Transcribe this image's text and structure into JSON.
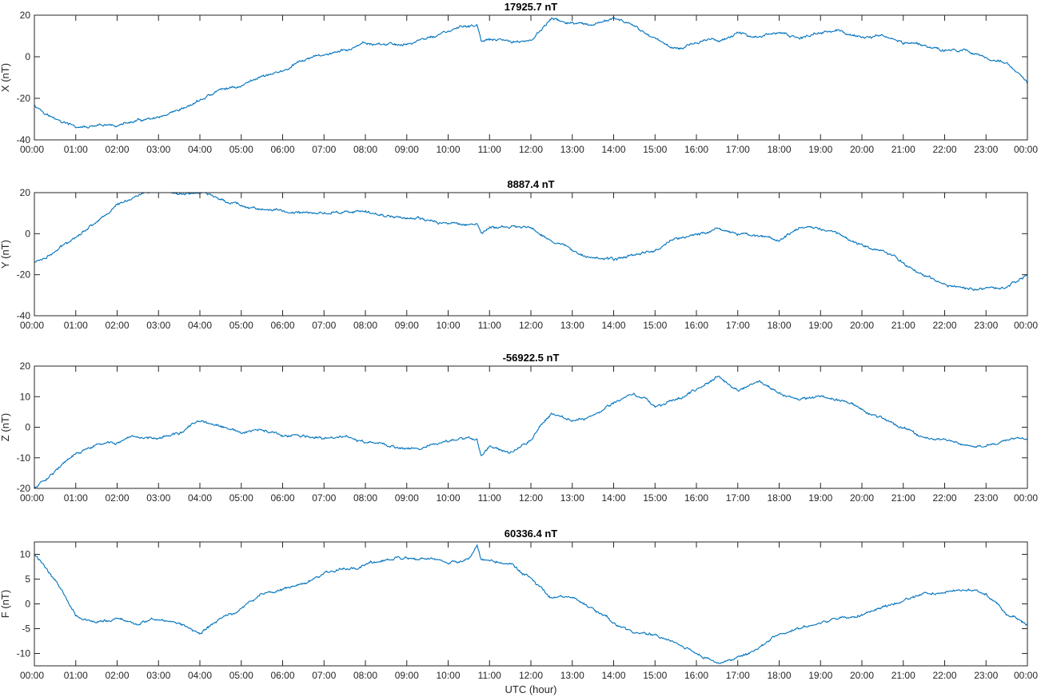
{
  "chart_data": [
    {
      "type": "line",
      "title": "17925.7 nT",
      "ylabel": "X (nT)",
      "xlabel": "",
      "ylim": [
        -40,
        20
      ],
      "yticks": [
        -40,
        -20,
        0,
        20
      ],
      "x_tick_labels": [
        "00:00",
        "01:00",
        "02:00",
        "03:00",
        "04:00",
        "05:00",
        "06:00",
        "07:00",
        "08:00",
        "09:00",
        "10:00",
        "11:00",
        "12:00",
        "13:00",
        "14:00",
        "15:00",
        "16:00",
        "17:00",
        "18:00",
        "19:00",
        "20:00",
        "21:00",
        "22:00",
        "23:00",
        "00:00"
      ],
      "xlim_hours": [
        0,
        24
      ],
      "color": "#0072BD",
      "series": [
        {
          "x": [
            0,
            0.5,
            1,
            1.5,
            2,
            2.5,
            3,
            3.5,
            4,
            4.5,
            5,
            5.5,
            6,
            6.5,
            7,
            7.5,
            8,
            8.5,
            9,
            9.5,
            10,
            10.5,
            10.7,
            10.8,
            11,
            11.5,
            12,
            12.5,
            13,
            13.5,
            14,
            14.5,
            15,
            15.5,
            16,
            16.5,
            17,
            17.5,
            18,
            18.5,
            19,
            19.5,
            20,
            20.5,
            21,
            21.5,
            22,
            22.5,
            23,
            23.5,
            24
          ],
          "y": [
            -23,
            -30,
            -34,
            -34,
            -33,
            -31,
            -30,
            -27,
            -21,
            -16,
            -14,
            -9,
            -7,
            -2,
            1,
            3,
            6,
            6,
            6,
            9,
            12,
            15,
            15,
            7,
            8,
            7,
            8,
            18,
            16,
            14,
            19,
            14,
            9,
            4,
            7,
            8,
            11,
            10,
            11,
            9,
            12,
            12,
            9,
            10,
            7,
            6,
            3,
            3,
            0,
            -3,
            -13
          ]
        }
      ]
    },
    {
      "type": "line",
      "title": "8887.4 nT",
      "ylabel": "Y (nT)",
      "xlabel": "",
      "ylim": [
        -40,
        20
      ],
      "yticks": [
        -40,
        -20,
        0,
        20
      ],
      "x_tick_labels": [
        "00:00",
        "01:00",
        "02:00",
        "03:00",
        "04:00",
        "05:00",
        "06:00",
        "07:00",
        "08:00",
        "09:00",
        "10:00",
        "11:00",
        "12:00",
        "13:00",
        "14:00",
        "15:00",
        "16:00",
        "17:00",
        "18:00",
        "19:00",
        "20:00",
        "21:00",
        "22:00",
        "23:00",
        "00:00"
      ],
      "xlim_hours": [
        0,
        24
      ],
      "color": "#0072BD",
      "series": [
        {
          "x": [
            0,
            0.5,
            1,
            1.5,
            2,
            2.5,
            3,
            3.5,
            4,
            4.5,
            5,
            5.5,
            6,
            6.5,
            7,
            7.5,
            8,
            8.5,
            9,
            9.5,
            10,
            10.5,
            10.7,
            10.8,
            11,
            11.5,
            12,
            12.5,
            13,
            13.5,
            14,
            14.5,
            15,
            15.5,
            16,
            16.5,
            17,
            17.5,
            18,
            18.5,
            19,
            19.5,
            20,
            20.5,
            21,
            21.5,
            22,
            22.5,
            23,
            23.5,
            24
          ],
          "y": [
            -14,
            -9,
            -1,
            6,
            14,
            19,
            21,
            19,
            20,
            17,
            14,
            12,
            11,
            10,
            10,
            11,
            10,
            9,
            8,
            6,
            5,
            5,
            5,
            0,
            3,
            3,
            3,
            -3,
            -8,
            -11,
            -13,
            -10,
            -8,
            -2,
            -1,
            3,
            0,
            -1,
            -3,
            2,
            3,
            0,
            -6,
            -8,
            -14,
            -20,
            -24,
            -27,
            -27,
            -26,
            -20
          ]
        }
      ]
    },
    {
      "type": "line",
      "title": "-56922.5 nT",
      "ylabel": "Z (nT)",
      "xlabel": "",
      "ylim": [
        -20,
        20
      ],
      "yticks": [
        -20,
        -10,
        0,
        10,
        20
      ],
      "x_tick_labels": [
        "00:00",
        "01:00",
        "02:00",
        "03:00",
        "04:00",
        "05:00",
        "06:00",
        "07:00",
        "08:00",
        "09:00",
        "10:00",
        "11:00",
        "12:00",
        "13:00",
        "14:00",
        "15:00",
        "16:00",
        "17:00",
        "18:00",
        "19:00",
        "20:00",
        "21:00",
        "22:00",
        "23:00",
        "00:00"
      ],
      "xlim_hours": [
        0,
        24
      ],
      "color": "#0072BD",
      "series": [
        {
          "x": [
            0,
            0.5,
            1,
            1.5,
            2,
            2.5,
            3,
            3.5,
            4,
            4.5,
            5,
            5.5,
            6,
            6.5,
            7,
            7.5,
            8,
            8.5,
            9,
            9.5,
            10,
            10.5,
            10.7,
            10.8,
            11,
            11.5,
            12,
            12.5,
            13,
            13.5,
            14,
            14.5,
            15,
            15.5,
            16,
            16.5,
            17,
            17.5,
            18,
            18.5,
            19,
            19.5,
            20,
            20.5,
            21,
            21.5,
            22,
            22.5,
            23,
            23.5,
            24
          ],
          "y": [
            -20,
            -14,
            -9,
            -6,
            -5,
            -4,
            -3,
            -2,
            2,
            0,
            -2,
            -1,
            -3,
            -3,
            -4,
            -3,
            -5,
            -6,
            -7,
            -6,
            -5,
            -3,
            -4,
            -10,
            -6,
            -8,
            -4,
            5,
            2,
            4,
            8,
            11,
            7,
            9,
            12,
            17,
            12,
            15,
            11,
            9,
            10,
            9,
            6,
            3,
            0,
            -3,
            -4,
            -6,
            -6,
            -4,
            -4
          ]
        }
      ]
    },
    {
      "type": "line",
      "title": "60336.4 nT",
      "ylabel": "F (nT)",
      "xlabel": "UTC (hour)",
      "ylim": [
        -12.5,
        12.5
      ],
      "yticks": [
        -10,
        -5,
        0,
        5,
        10
      ],
      "x_tick_labels": [
        "00:00",
        "01:00",
        "02:00",
        "03:00",
        "04:00",
        "05:00",
        "06:00",
        "07:00",
        "08:00",
        "09:00",
        "10:00",
        "11:00",
        "12:00",
        "13:00",
        "14:00",
        "15:00",
        "16:00",
        "17:00",
        "18:00",
        "19:00",
        "20:00",
        "21:00",
        "22:00",
        "23:00",
        "00:00"
      ],
      "xlim_hours": [
        0,
        24
      ],
      "color": "#0072BD",
      "series": [
        {
          "x": [
            0,
            0.5,
            1,
            1.5,
            2,
            2.5,
            3,
            3.5,
            4,
            4.5,
            5,
            5.5,
            6,
            6.5,
            7,
            7.5,
            8,
            8.5,
            9,
            9.5,
            10,
            10.5,
            10.7,
            10.8,
            11,
            11.5,
            12,
            12.5,
            13,
            13.5,
            14,
            14.5,
            15,
            15.5,
            16,
            16.5,
            17,
            17.5,
            18,
            18.5,
            19,
            19.5,
            20,
            20.5,
            21,
            21.5,
            22,
            22.5,
            23,
            23.5,
            24
          ],
          "y": [
            10,
            5,
            -2,
            -4,
            -3,
            -4,
            -3,
            -4,
            -6,
            -3,
            -1,
            2,
            3,
            4,
            6,
            7,
            8,
            9,
            9,
            9,
            8,
            9,
            12,
            9,
            9,
            8,
            5,
            1,
            1,
            -1,
            -4,
            -6,
            -6,
            -8,
            -10,
            -12,
            -11,
            -9,
            -6,
            -5,
            -4,
            -3,
            -2,
            -1,
            1,
            2,
            2,
            3,
            2,
            -2,
            -4
          ]
        }
      ]
    }
  ]
}
